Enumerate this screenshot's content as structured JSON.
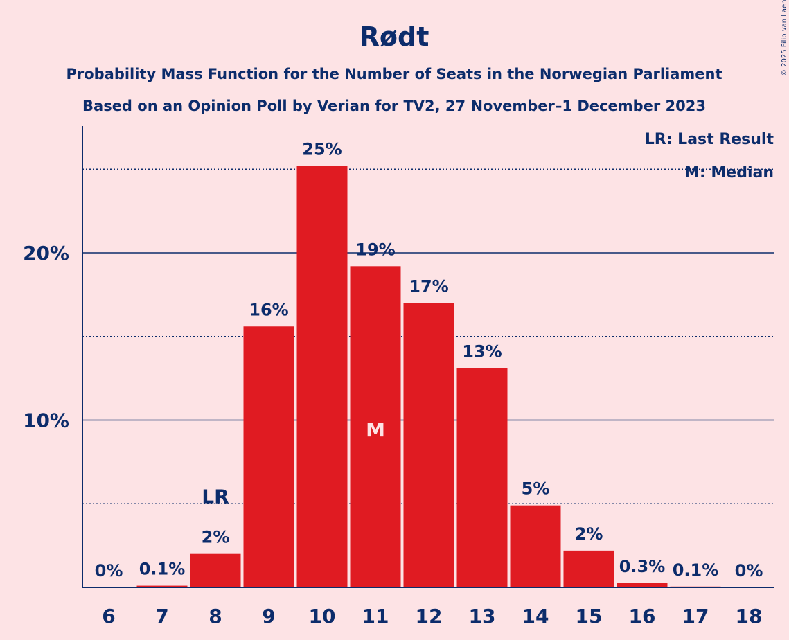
{
  "copyright": "© 2025 Filip van Laenen",
  "colors": {
    "background": "#FDE3E5",
    "bar": "#E01B22",
    "text": "#0C2C6B"
  },
  "chart_data": {
    "type": "bar",
    "title": "Rødt",
    "subtitle": "Probability Mass Function for the Number of Seats in the Norwegian Parliament",
    "subtitle2": "Based on an Opinion Poll by Verian for TV2, 27 November–1 December 2023",
    "legend": {
      "lr": "LR: Last Result",
      "m": "M: Median",
      "position": "top-right"
    },
    "categories": [
      "6",
      "7",
      "8",
      "9",
      "10",
      "11",
      "12",
      "13",
      "14",
      "15",
      "16",
      "17",
      "18"
    ],
    "values": [
      0,
      0.1,
      2.0,
      15.6,
      25.2,
      19.2,
      17.0,
      13.1,
      4.9,
      2.2,
      0.25,
      0.05,
      0
    ],
    "labels": [
      "0%",
      "0.1%",
      "2%",
      "16%",
      "25%",
      "19%",
      "17%",
      "13%",
      "5%",
      "2%",
      "0.3%",
      "0.1%",
      "0%"
    ],
    "ylim": [
      0,
      27.5
    ],
    "yticks": [
      {
        "value": 10,
        "label": "10%"
      },
      {
        "value": 20,
        "label": "20%"
      }
    ],
    "minor_gridlines": [
      5,
      15,
      25
    ],
    "last_result": {
      "category": "8",
      "label": "LR"
    },
    "median": {
      "category": "11",
      "label": "M"
    },
    "grid": true
  }
}
